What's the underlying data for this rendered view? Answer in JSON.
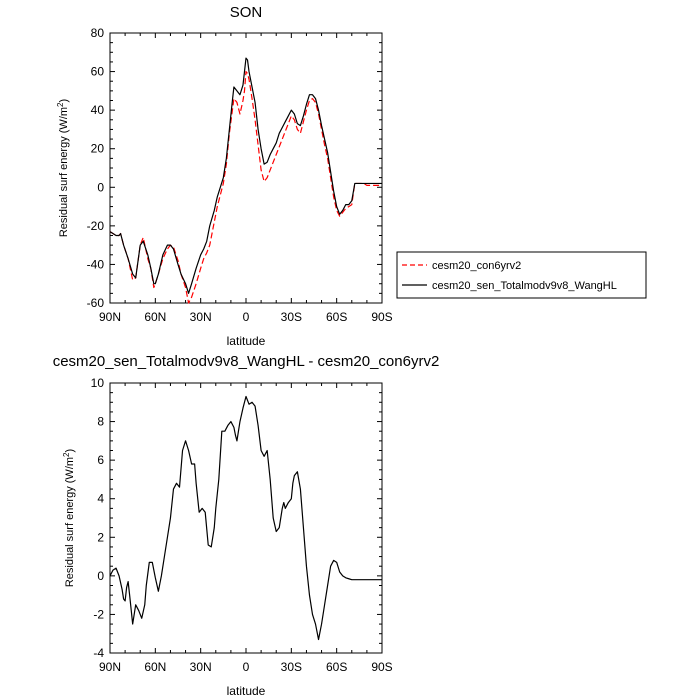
{
  "charts": [
    {
      "title": "SON",
      "ylabel_main": "Residual surf energy (W/m",
      "ylabel_sup": "2",
      "ylabel_end": ")",
      "xlabel": "latitude"
    },
    {
      "title": "cesm20_sen_Totalmodv9v8_WangHL - cesm20_con6yrv2",
      "ylabel_main": "Residual surf energy (W/m",
      "ylabel_sup": "2",
      "ylabel_end": ")",
      "xlabel": "latitude"
    }
  ],
  "legend": [
    {
      "name": "cesm20_con6yrv2",
      "color": "#ff0000",
      "dash": "dashed"
    },
    {
      "name": "cesm20_sen_Totalmodv9v8_WangHL",
      "color": "#000000",
      "dash": "solid"
    }
  ],
  "chart_data": [
    {
      "type": "line",
      "title": "SON",
      "xlabel": "latitude",
      "ylabel": "Residual surf energy (W/m2)",
      "xlim": [
        90,
        -90
      ],
      "ylim": [
        -60,
        80
      ],
      "x_ticks": [
        90,
        60,
        30,
        0,
        -30,
        -60,
        -90
      ],
      "x_tick_labels": [
        "90N",
        "60N",
        "30N",
        "0",
        "30S",
        "60S",
        "90S"
      ],
      "y_ticks": [
        -60,
        -40,
        -20,
        0,
        20,
        40,
        60,
        80
      ],
      "y_tick_labels": [
        "-60",
        "-40",
        "-20",
        "0",
        "20",
        "40",
        "60",
        "80"
      ],
      "legend_position": "right",
      "series": [
        {
          "name": "cesm20_sen_Totalmodv9v8_WangHL",
          "color": "#000000",
          "dash": "solid",
          "x": [
            90,
            86,
            84,
            83,
            81,
            78,
            75,
            73,
            70,
            68,
            65,
            63,
            61,
            60,
            58,
            55,
            52,
            50,
            48,
            45,
            43,
            40,
            38,
            36,
            33,
            30,
            28,
            26,
            24,
            21,
            19,
            17,
            15,
            13,
            11,
            9,
            8,
            6,
            4,
            2,
            1,
            0,
            -1,
            -2,
            -4,
            -6,
            -8,
            -10,
            -12,
            -14,
            -16,
            -18,
            -20,
            -22,
            -24,
            -26,
            -28,
            -30,
            -32,
            -34,
            -36,
            -38,
            -40,
            -42,
            -44,
            -46,
            -48,
            -50,
            -52,
            -54,
            -56,
            -58,
            -60,
            -62,
            -64,
            -66,
            -68,
            -70,
            -72,
            -74,
            -76,
            -78,
            -80,
            -84,
            -88,
            -90
          ],
          "y": [
            -23,
            -25,
            -25,
            -24,
            -30,
            -37,
            -45,
            -47,
            -30,
            -28,
            -35,
            -42,
            -50,
            -50,
            -45,
            -35,
            -30,
            -30,
            -32,
            -40,
            -45,
            -50,
            -55,
            -50,
            -42,
            -35,
            -32,
            -28,
            -20,
            -12,
            -5,
            0,
            5,
            15,
            30,
            45,
            52,
            50,
            48,
            53,
            60,
            67,
            66,
            60,
            52,
            44,
            30,
            20,
            12,
            13,
            17,
            20,
            23,
            28,
            31,
            34,
            37,
            40,
            38,
            33,
            32,
            37,
            43,
            48,
            48,
            46,
            40,
            32,
            25,
            18,
            8,
            -2,
            -10,
            -14,
            -12,
            -9,
            -9,
            -7,
            2,
            2,
            2,
            2,
            2,
            2,
            2,
            2
          ]
        },
        {
          "name": "cesm20_con6yrv2",
          "color": "#ff0000",
          "dash": "dashed",
          "x": [
            90,
            86,
            84,
            83,
            81,
            78,
            75,
            73,
            70,
            68,
            65,
            63,
            61,
            60,
            58,
            55,
            52,
            50,
            48,
            45,
            43,
            40,
            38,
            36,
            33,
            30,
            28,
            26,
            24,
            21,
            19,
            17,
            15,
            13,
            11,
            9,
            8,
            6,
            4,
            2,
            1,
            0,
            -1,
            -2,
            -4,
            -6,
            -8,
            -10,
            -12,
            -14,
            -16,
            -18,
            -20,
            -22,
            -24,
            -26,
            -28,
            -30,
            -32,
            -34,
            -36,
            -38,
            -40,
            -42,
            -44,
            -46,
            -48,
            -50,
            -52,
            -54,
            -56,
            -58,
            -60,
            -62,
            -64,
            -66,
            -68,
            -70,
            -72,
            -74,
            -76,
            -78,
            -80,
            -84,
            -88,
            -90
          ],
          "y": [
            -23,
            -25,
            -25,
            -24,
            -30,
            -37,
            -48,
            -47,
            -30,
            -26,
            -37,
            -42,
            -52,
            -50,
            -45,
            -37,
            -32,
            -30,
            -31,
            -38,
            -45,
            -52,
            -60,
            -57,
            -50,
            -42,
            -37,
            -34,
            -30,
            -18,
            -10,
            -4,
            2,
            12,
            28,
            40,
            46,
            44,
            38,
            45,
            50,
            60,
            59,
            56,
            46,
            35,
            22,
            9,
            3,
            5,
            9,
            13,
            17,
            21,
            25,
            29,
            33,
            37,
            35,
            30,
            28,
            34,
            40,
            45,
            46,
            44,
            38,
            30,
            22,
            15,
            5,
            -5,
            -12,
            -15,
            -13,
            -11,
            -10,
            -9,
            2,
            2,
            2,
            2,
            1,
            1,
            1,
            1
          ]
        }
      ]
    },
    {
      "type": "line",
      "title": "cesm20_sen_Totalmodv9v8_WangHL - cesm20_con6yrv2",
      "xlabel": "latitude",
      "ylabel": "Residual surf energy (W/m2)",
      "xlim": [
        90,
        -90
      ],
      "ylim": [
        -4,
        10
      ],
      "x_ticks": [
        90,
        60,
        30,
        0,
        -30,
        -60,
        -90
      ],
      "x_tick_labels": [
        "90N",
        "60N",
        "30N",
        "0",
        "30S",
        "60S",
        "90S"
      ],
      "y_ticks": [
        -4,
        -2,
        0,
        2,
        4,
        6,
        8,
        10
      ],
      "y_tick_labels": [
        "-4",
        "-2",
        "0",
        "2",
        "4",
        "6",
        "8",
        "10"
      ],
      "series": [
        {
          "name": "cesm20_sen_Totalmodv9v8_WangHL - cesm20_con6yrv2",
          "color": "#000000",
          "dash": "solid",
          "x": [
            90,
            88,
            86,
            84,
            82,
            81,
            80,
            79,
            78,
            77,
            75,
            73,
            71,
            69,
            67,
            66,
            64,
            62,
            60,
            58,
            56,
            54,
            52,
            50,
            48,
            46,
            44,
            42,
            40,
            38,
            36,
            34,
            33,
            31,
            29,
            27,
            25,
            23,
            21,
            20,
            18,
            16,
            14,
            12,
            10,
            8,
            7,
            6,
            4,
            2,
            0,
            -2,
            -4,
            -6,
            -8,
            -10,
            -12,
            -14,
            -16,
            -18,
            -20,
            -22,
            -24,
            -25,
            -26,
            -28,
            -30,
            -31,
            -32,
            -34,
            -36,
            -38,
            -40,
            -42,
            -44,
            -46,
            -48,
            -50,
            -52,
            -54,
            -56,
            -58,
            -60,
            -62,
            -64,
            -66,
            -68,
            -70,
            -72,
            -74,
            -76,
            -78,
            -80,
            -84,
            -88,
            -90
          ],
          "y": [
            0,
            0.3,
            0.4,
            0,
            -0.7,
            -1.2,
            -1.3,
            -0.6,
            -0.3,
            -1,
            -2.5,
            -1.5,
            -1.8,
            -2.2,
            -1.5,
            -0.5,
            0.7,
            0.7,
            -0.1,
            -0.8,
            0,
            1,
            2,
            3,
            4.5,
            4.8,
            4.6,
            6.5,
            7,
            6.5,
            5.8,
            5.8,
            4.8,
            3.3,
            3.5,
            3.3,
            1.6,
            1.5,
            2.5,
            3.5,
            5,
            7.5,
            7.5,
            7.8,
            8,
            7.7,
            7.3,
            7,
            8,
            8.7,
            9.3,
            8.9,
            9,
            8.8,
            7.8,
            6.5,
            6.2,
            6.5,
            5,
            3,
            2.3,
            2.5,
            3.5,
            3.8,
            3.5,
            3.8,
            4,
            4.8,
            5.2,
            5.4,
            4.5,
            2.5,
            0.5,
            -1,
            -2,
            -2.5,
            -3.3,
            -2.5,
            -1.5,
            -0.5,
            0.5,
            0.8,
            0.7,
            0.2,
            0,
            -0.1,
            -0.15,
            -0.2,
            -0.2,
            -0.2,
            -0.2,
            -0.2,
            -0.2,
            -0.2,
            -0.2,
            -0.2
          ]
        }
      ]
    }
  ]
}
